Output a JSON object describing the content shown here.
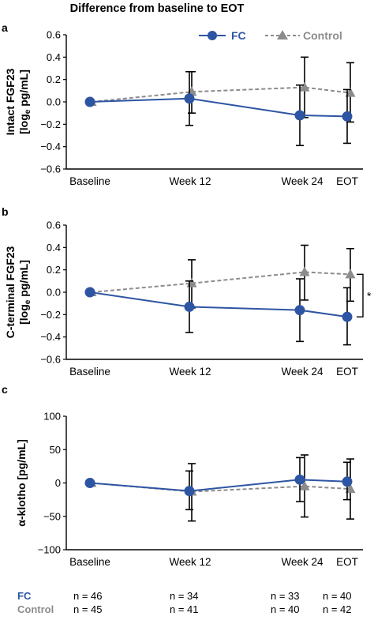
{
  "figure_title": "Difference from baseline to EOT",
  "legend": {
    "fc_label": "FC",
    "control_label": "Control"
  },
  "colors": {
    "fc": "#2E55A3",
    "control": "#8C8C8C",
    "axis": "#000000"
  },
  "markers": {
    "fc": "circle",
    "control": "triangle"
  },
  "n_table": {
    "fc_label": "FC",
    "control_label": "Control",
    "fc_counts": [
      "n = 46",
      "n = 34",
      "n = 33",
      "n = 40"
    ],
    "control_counts": [
      "n = 45",
      "n = 41",
      "n = 40",
      "n = 42"
    ]
  },
  "chart_data": [
    {
      "panel": "a",
      "type": "line",
      "ylabel_line1": "Intact FGF23",
      "ylabel_line2": "[log",
      "ylabel_sub": "e",
      "ylabel_line2_tail": " pg/mL]",
      "categories": [
        "Baseline",
        "Week 12",
        "Week 24",
        "EOT"
      ],
      "ylim": [
        -0.6,
        0.6
      ],
      "yticks": [
        -0.6,
        -0.4,
        -0.2,
        0.0,
        0.2,
        0.4,
        0.6
      ],
      "ytick_labels": [
        "−0.6",
        "−0.4",
        "−0.2",
        "0.0",
        "0.2",
        "0.4",
        "0.6"
      ],
      "annotation": "",
      "series": [
        {
          "name": "FC",
          "values": [
            0.0,
            0.03,
            -0.12,
            -0.13
          ],
          "err_low": [
            0.0,
            -0.21,
            -0.39,
            -0.37
          ],
          "err_high": [
            0.0,
            0.27,
            0.15,
            0.11
          ]
        },
        {
          "name": "Control",
          "values": [
            0.0,
            0.09,
            0.13,
            0.08
          ],
          "err_low": [
            0.0,
            -0.1,
            -0.14,
            -0.18
          ],
          "err_high": [
            0.0,
            0.27,
            0.4,
            0.35
          ]
        }
      ]
    },
    {
      "panel": "b",
      "type": "line",
      "ylabel_line1": "C-terminal FGF23",
      "ylabel_line2": "[log",
      "ylabel_sub": "e",
      "ylabel_line2_tail": " pg/mL]",
      "categories": [
        "Baseline",
        "Week 12",
        "Week 24",
        "EOT"
      ],
      "ylim": [
        -0.6,
        0.6
      ],
      "yticks": [
        -0.6,
        -0.4,
        -0.2,
        0.0,
        0.2,
        0.4,
        0.6
      ],
      "ytick_labels": [
        "−0.6",
        "−0.4",
        "−0.2",
        "0.0",
        "0.2",
        "0.4",
        "0.6"
      ],
      "annotation": "*",
      "series": [
        {
          "name": "FC",
          "values": [
            0.0,
            -0.13,
            -0.16,
            -0.22
          ],
          "err_low": [
            0.0,
            -0.36,
            -0.44,
            -0.47
          ],
          "err_high": [
            0.0,
            0.1,
            0.12,
            0.04
          ]
        },
        {
          "name": "Control",
          "values": [
            0.0,
            0.08,
            0.18,
            0.16
          ],
          "err_low": [
            0.0,
            -0.14,
            -0.07,
            -0.08
          ],
          "err_high": [
            0.0,
            0.29,
            0.42,
            0.39
          ]
        }
      ]
    },
    {
      "panel": "c",
      "type": "line",
      "ylabel_line1": "α-klotho [pg/mL]",
      "ylabel_line2": "",
      "ylabel_sub": "",
      "ylabel_line2_tail": "",
      "categories": [
        "Baseline",
        "Week 12",
        "Week 24",
        "EOT"
      ],
      "ylim": [
        -100,
        100
      ],
      "yticks": [
        -100,
        -50,
        0,
        50,
        100
      ],
      "ytick_labels": [
        "−100",
        "−50",
        "0",
        "50",
        "100"
      ],
      "annotation": "",
      "series": [
        {
          "name": "FC",
          "values": [
            0,
            -12,
            5,
            2
          ],
          "err_low": [
            0,
            -40,
            -28,
            -25
          ],
          "err_high": [
            0,
            18,
            38,
            31
          ]
        },
        {
          "name": "Control",
          "values": [
            0,
            -13,
            -5,
            -9
          ],
          "err_low": [
            0,
            -57,
            -51,
            -54
          ],
          "err_high": [
            0,
            29,
            42,
            36
          ]
        }
      ]
    }
  ]
}
